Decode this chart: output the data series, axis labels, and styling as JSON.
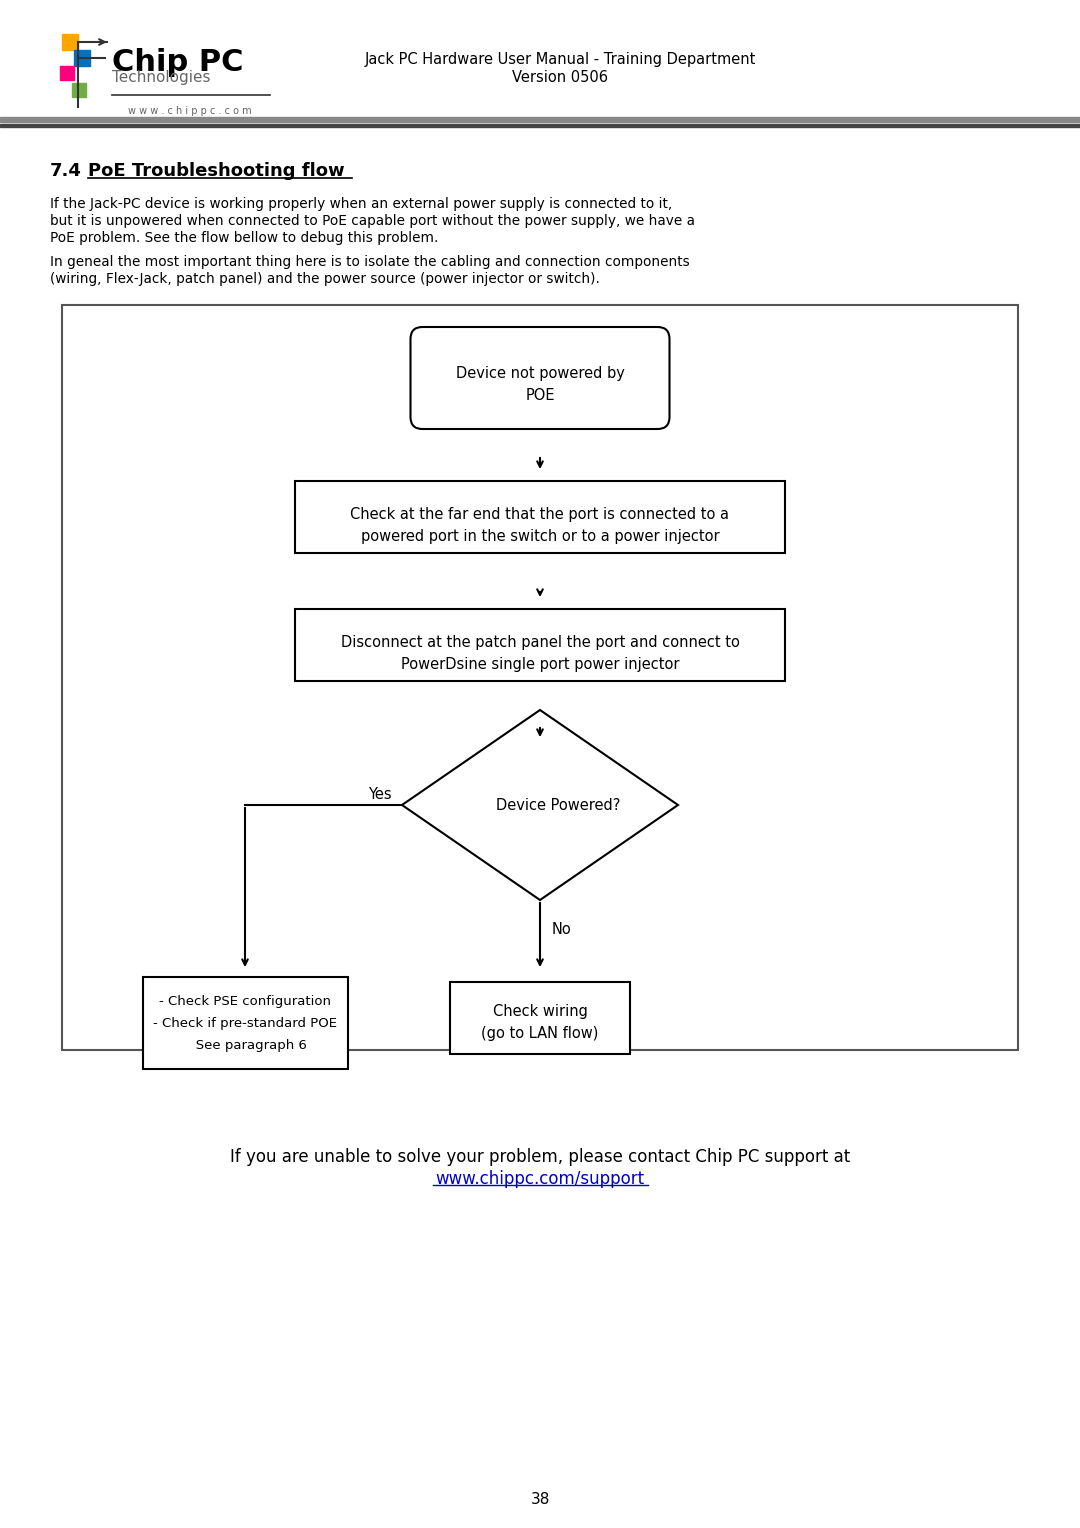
{
  "title_num": "7.4",
  "title_text": "PoE Troubleshooting flow",
  "para1_lines": [
    "If the Jack-PC device is working properly when an external power supply is connected to it,",
    "but it is unpowered when connected to PoE capable port without the power supply, we have a",
    "PoE problem. See the flow bellow to debug this problem."
  ],
  "para2_lines": [
    "In geneal the most important thing here is to isolate the cabling and connection components",
    "(wiring, Flex-Jack, patch panel) and the power source (power injector or switch)."
  ],
  "header_right1": "Jack PC Hardware User Manual - Training Department",
  "header_right2": "Version 0506",
  "footer_text": "38",
  "box1_lines": [
    "Device not powered by",
    "POE"
  ],
  "box2_lines": [
    "Check at the far end that the port is connected to a",
    "powered port in the switch or to a power injector"
  ],
  "box3_lines": [
    "Disconnect at the patch panel the port and connect to",
    "PowerDsine single port power injector"
  ],
  "diamond_text": "Device Powered?",
  "yes_label": "Yes",
  "no_label": "No",
  "box4_lines": [
    "- Check PSE configuration",
    "- Check if pre-standard POE",
    "   See paragraph 6"
  ],
  "box5_lines": [
    "Check wiring",
    "(go to LAN flow)"
  ],
  "support_text": "If you are unable to solve your problem, please contact Chip PC support at",
  "support_link": "www.chippc.com/support",
  "bg_color": "#ffffff",
  "text_color": "#000000",
  "link_color": "#0000cc",
  "diagram_border": "#555555",
  "logo_orange": "#FFA500",
  "logo_blue": "#0070C0",
  "logo_pink": "#FF007F",
  "logo_green": "#70AD47"
}
